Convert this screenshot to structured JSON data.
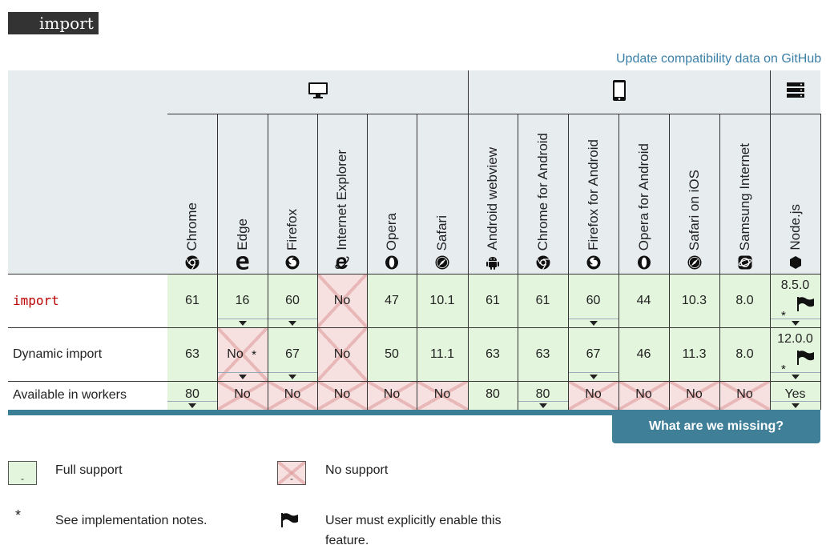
{
  "title": "import",
  "update_link": "Update compatibility data on GitHub",
  "platforms": [
    {
      "name": "desktop-icon"
    },
    {
      "name": "mobile-icon"
    },
    {
      "name": "server-icon"
    }
  ],
  "browsers": [
    {
      "key": "chrome",
      "label": "Chrome",
      "icon": "chrome-icon"
    },
    {
      "key": "edge",
      "label": "Edge",
      "icon": "edge-icon"
    },
    {
      "key": "firefox",
      "label": "Firefox",
      "icon": "firefox-icon"
    },
    {
      "key": "ie",
      "label": "Internet Explorer",
      "icon": "ie-icon"
    },
    {
      "key": "opera",
      "label": "Opera",
      "icon": "opera-icon"
    },
    {
      "key": "safari",
      "label": "Safari",
      "icon": "safari-icon"
    },
    {
      "key": "webview",
      "label": "Android webview",
      "icon": "android-icon"
    },
    {
      "key": "chrome_android",
      "label": "Chrome for Android",
      "icon": "chrome-icon"
    },
    {
      "key": "firefox_android",
      "label": "Firefox for Android",
      "icon": "firefox-icon"
    },
    {
      "key": "opera_android",
      "label": "Opera for Android",
      "icon": "opera-icon"
    },
    {
      "key": "safari_ios",
      "label": "Safari on iOS",
      "icon": "safari-icon"
    },
    {
      "key": "samsung",
      "label": "Samsung Internet",
      "icon": "samsung-icon"
    },
    {
      "key": "nodejs",
      "label": "Node.js",
      "icon": "nodejs-icon"
    }
  ],
  "rows": [
    {
      "feature": "import",
      "code": true,
      "cells": [
        {
          "v": "61",
          "s": "yes"
        },
        {
          "v": "16",
          "s": "yes",
          "dd": true
        },
        {
          "v": "60",
          "s": "yes",
          "dd": true
        },
        {
          "v": "No",
          "s": "no"
        },
        {
          "v": "47",
          "s": "yes"
        },
        {
          "v": "10.1",
          "s": "yes"
        },
        {
          "v": "61",
          "s": "yes"
        },
        {
          "v": "61",
          "s": "yes"
        },
        {
          "v": "60",
          "s": "yes",
          "dd": true
        },
        {
          "v": "44",
          "s": "yes"
        },
        {
          "v": "10.3",
          "s": "yes"
        },
        {
          "v": "8.0",
          "s": "yes"
        },
        {
          "v": "8.5.0",
          "s": "yes",
          "dd": true,
          "star": true,
          "flag": true
        }
      ]
    },
    {
      "feature": "Dynamic import",
      "code": false,
      "cells": [
        {
          "v": "63",
          "s": "yes"
        },
        {
          "v": "No",
          "s": "no",
          "dd": true,
          "star": true
        },
        {
          "v": "67",
          "s": "yes",
          "dd": true
        },
        {
          "v": "No",
          "s": "no"
        },
        {
          "v": "50",
          "s": "yes"
        },
        {
          "v": "11.1",
          "s": "yes"
        },
        {
          "v": "63",
          "s": "yes"
        },
        {
          "v": "63",
          "s": "yes"
        },
        {
          "v": "67",
          "s": "yes",
          "dd": true
        },
        {
          "v": "46",
          "s": "yes"
        },
        {
          "v": "11.3",
          "s": "yes"
        },
        {
          "v": "8.0",
          "s": "yes"
        },
        {
          "v": "12.0.0",
          "s": "yes",
          "dd": true,
          "star": true,
          "flag": true
        }
      ]
    },
    {
      "feature": "Available in workers",
      "code": false,
      "cells": [
        {
          "v": "80",
          "s": "yes",
          "dd": true
        },
        {
          "v": "No",
          "s": "no"
        },
        {
          "v": "No",
          "s": "no"
        },
        {
          "v": "No",
          "s": "no"
        },
        {
          "v": "No",
          "s": "no"
        },
        {
          "v": "No",
          "s": "no"
        },
        {
          "v": "80",
          "s": "yes"
        },
        {
          "v": "80",
          "s": "yes",
          "dd": true
        },
        {
          "v": "No",
          "s": "no"
        },
        {
          "v": "No",
          "s": "no"
        },
        {
          "v": "No",
          "s": "no"
        },
        {
          "v": "No",
          "s": "no"
        },
        {
          "v": "Yes",
          "s": "yes",
          "dd": true
        }
      ]
    }
  ],
  "missing_button": "What are we missing?",
  "legend": {
    "full_support": "Full support",
    "no_support": "No support",
    "notes": "See implementation notes.",
    "flag": "User must explicitly enable this feature.",
    "dash": "-"
  }
}
